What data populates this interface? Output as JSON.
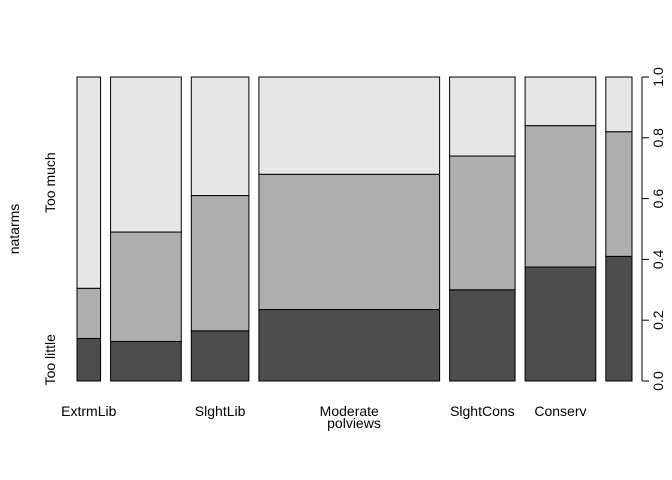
{
  "chart_data": {
    "type": "spineplot",
    "xlabel": "polviews",
    "ylabel": "natarms",
    "ylim": [
      0,
      1
    ],
    "y_ticks": [
      "0.0",
      "0.2",
      "0.4",
      "0.6",
      "0.8",
      "1.0"
    ],
    "left_axis_labels": [
      "Too little",
      "Too much"
    ],
    "categories": [
      "ExtrmLib",
      "",
      "SlghtLib",
      "Moderate",
      "SlghtCons",
      "Conserv",
      ""
    ],
    "category_weights": [
      0.045,
      0.135,
      0.11,
      0.345,
      0.125,
      0.135,
      0.05
    ],
    "series": [
      {
        "level": "Too little",
        "color": "#4d4d4d",
        "values": [
          0.14,
          0.13,
          0.165,
          0.235,
          0.3,
          0.375,
          0.41
        ]
      },
      {
        "level": "middle",
        "color": "#aeaeae",
        "values": [
          0.165,
          0.36,
          0.445,
          0.445,
          0.44,
          0.465,
          0.41
        ]
      },
      {
        "level": "Too much",
        "color": "#e6e6e6",
        "values": [
          0.695,
          0.51,
          0.39,
          0.32,
          0.26,
          0.16,
          0.18
        ]
      }
    ],
    "grid": false,
    "legend": "none"
  }
}
